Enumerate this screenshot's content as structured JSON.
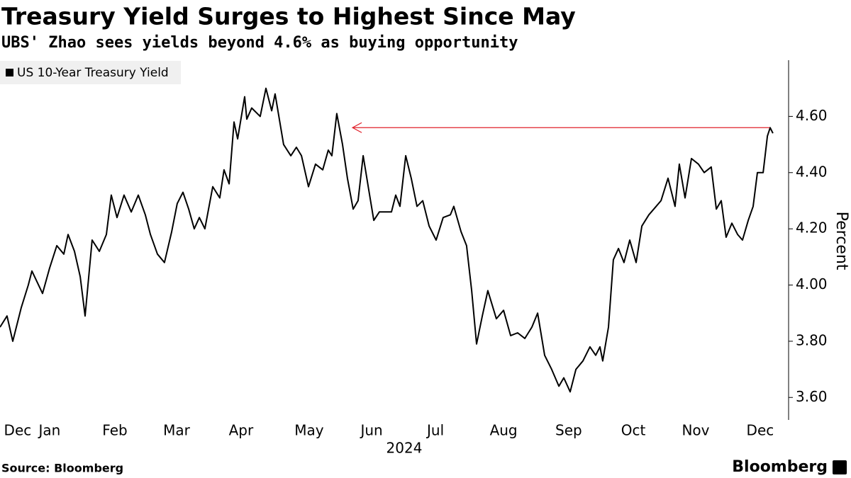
{
  "chart_data": {
    "type": "line",
    "title": "Treasury Yield Surges to Highest Since May",
    "subtitle": "UBS' Zhao sees yields beyond 4.6% as buying opportunity",
    "y_label": "Percent",
    "x_label": "2024",
    "source": "Source: Bloomberg",
    "brand": "Bloomberg",
    "legend": "top-left",
    "xlim": [
      0,
      370
    ],
    "ylim": [
      3.52,
      4.8
    ],
    "yticks": [
      {
        "value": 3.6,
        "label": "3.60"
      },
      {
        "value": 3.8,
        "label": "3.80"
      },
      {
        "value": 4.0,
        "label": "4.00"
      },
      {
        "value": 4.2,
        "label": "4.20"
      },
      {
        "value": 4.4,
        "label": "4.40"
      },
      {
        "value": 4.6,
        "label": "4.60"
      }
    ],
    "xticks": [
      {
        "value": 8.3,
        "label": "Dec"
      },
      {
        "value": 23.3,
        "label": "Jan"
      },
      {
        "value": 54,
        "label": "Feb"
      },
      {
        "value": 83,
        "label": "Mar"
      },
      {
        "value": 113.3,
        "label": "Apr"
      },
      {
        "value": 145.3,
        "label": "May"
      },
      {
        "value": 174.7,
        "label": "Jun"
      },
      {
        "value": 204.7,
        "label": "Jul"
      },
      {
        "value": 236.7,
        "label": "Aug"
      },
      {
        "value": 267.3,
        "label": "Sep"
      },
      {
        "value": 297.7,
        "label": "Oct"
      },
      {
        "value": 327,
        "label": "Nov"
      },
      {
        "value": 357.3,
        "label": "Dec"
      }
    ],
    "arrow": {
      "y": 4.56,
      "x": [
        165.7,
        361.7
      ],
      "color": "#e0202a"
    },
    "x": [
      0,
      3.3,
      6,
      10,
      13.3,
      15,
      20,
      23.3,
      26.7,
      30,
      32,
      35,
      37.7,
      40,
      43.3,
      46.7,
      50,
      52.3,
      55,
      58.3,
      61.7,
      65,
      68.3,
      70.7,
      74,
      77.3,
      80.7,
      83.3,
      86,
      88.7,
      91.3,
      93.7,
      96.3,
      100,
      103.3,
      105.3,
      107.7,
      110,
      111.7,
      115,
      116,
      118.3,
      122.3,
      125,
      127.7,
      129.3,
      133.3,
      136.7,
      139.3,
      141.7,
      145,
      148.3,
      151.7,
      154.3,
      156,
      158.3,
      161,
      163.3,
      166,
      168.3,
      170.7,
      173.3,
      175.7,
      178.3,
      181.7,
      184,
      186,
      188,
      190.7,
      193.3,
      196,
      198.7,
      201.7,
      205,
      208.3,
      211.7,
      213.3,
      216.7,
      219.3,
      221.7,
      224,
      226.7,
      229.3,
      233.3,
      236.7,
      240,
      243.3,
      246.7,
      250,
      252.7,
      256,
      259.3,
      262.7,
      265,
      268,
      270.7,
      274,
      277.3,
      280,
      282,
      283.3,
      286,
      288.3,
      290.7,
      293.3,
      296,
      299,
      301.7,
      305,
      307.3,
      310.7,
      314,
      317.3,
      319.3,
      322,
      325,
      328.3,
      331,
      334.3,
      336.7,
      339,
      341.3,
      344,
      346.7,
      349,
      351.7,
      354,
      356,
      358.7,
      360.7,
      362,
      363.3
    ],
    "series": [
      {
        "name": "US 10-Year Treasury Yield",
        "color": "#000000",
        "values": [
          3.85,
          3.89,
          3.8,
          3.92,
          4.0,
          4.05,
          3.97,
          4.06,
          4.14,
          4.11,
          4.18,
          4.12,
          4.03,
          3.89,
          4.16,
          4.12,
          4.18,
          4.32,
          4.24,
          4.32,
          4.26,
          4.32,
          4.25,
          4.18,
          4.11,
          4.08,
          4.19,
          4.29,
          4.33,
          4.27,
          4.2,
          4.24,
          4.2,
          4.35,
          4.31,
          4.41,
          4.36,
          4.58,
          4.52,
          4.67,
          4.59,
          4.63,
          4.6,
          4.7,
          4.62,
          4.68,
          4.5,
          4.46,
          4.49,
          4.46,
          4.35,
          4.43,
          4.41,
          4.48,
          4.46,
          4.61,
          4.5,
          4.38,
          4.27,
          4.3,
          4.46,
          4.34,
          4.23,
          4.26,
          4.26,
          4.26,
          4.32,
          4.28,
          4.46,
          4.38,
          4.28,
          4.3,
          4.21,
          4.16,
          4.24,
          4.25,
          4.28,
          4.19,
          4.14,
          3.98,
          3.79,
          3.89,
          3.98,
          3.88,
          3.91,
          3.82,
          3.83,
          3.81,
          3.85,
          3.9,
          3.75,
          3.7,
          3.64,
          3.67,
          3.62,
          3.7,
          3.73,
          3.78,
          3.75,
          3.78,
          3.73,
          3.85,
          4.09,
          4.13,
          4.08,
          4.16,
          4.08,
          4.21,
          4.25,
          4.27,
          4.3,
          4.38,
          4.28,
          4.43,
          4.31,
          4.45,
          4.43,
          4.4,
          4.42,
          4.27,
          4.3,
          4.17,
          4.22,
          4.18,
          4.16,
          4.23,
          4.28,
          4.4,
          4.4,
          4.53,
          4.56,
          4.54
        ]
      }
    ]
  }
}
